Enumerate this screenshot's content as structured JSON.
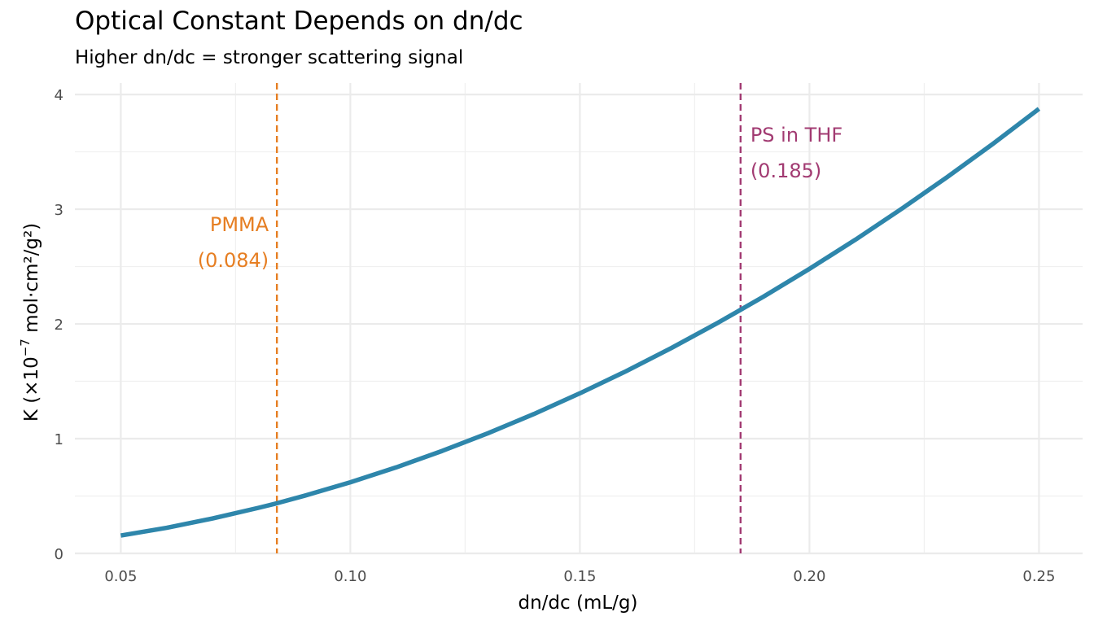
{
  "chart_data": {
    "type": "line",
    "title": "Optical Constant Depends on dn/dc",
    "subtitle": "Higher dn/dc = stronger scattering signal",
    "xlabel": "dn/dc (mL/g)",
    "ylabel": {
      "prefix": "K (×10",
      "exponent": "−7",
      "suffix": " mol·cm²/g²)"
    },
    "xlim": [
      0.04,
      0.2595
    ],
    "ylim": [
      0,
      4.1
    ],
    "x_ticks": [
      {
        "value": 0.05,
        "label": "0.05"
      },
      {
        "value": 0.1,
        "label": "0.10"
      },
      {
        "value": 0.15,
        "label": "0.15"
      },
      {
        "value": 0.2,
        "label": "0.20"
      },
      {
        "value": 0.25,
        "label": "0.25"
      }
    ],
    "y_ticks": [
      {
        "value": 0,
        "label": "0"
      },
      {
        "value": 1,
        "label": "1"
      },
      {
        "value": 2,
        "label": "2"
      },
      {
        "value": 3,
        "label": "3"
      },
      {
        "value": 4,
        "label": "4"
      }
    ],
    "x_minor": [
      0.075,
      0.125,
      0.175,
      0.225
    ],
    "y_minor": [
      0.5,
      1.5,
      2.5,
      3.5
    ],
    "grid": true,
    "series": [
      {
        "color": "#2E86AB",
        "x": [
          0.05,
          0.06,
          0.07,
          0.08,
          0.084,
          0.09,
          0.1,
          0.11,
          0.12,
          0.13,
          0.14,
          0.15,
          0.16,
          0.17,
          0.18,
          0.185,
          0.19,
          0.2,
          0.21,
          0.22,
          0.23,
          0.24,
          0.25
        ],
        "y": [
          0.155,
          0.223,
          0.304,
          0.397,
          0.437,
          0.502,
          0.62,
          0.75,
          0.893,
          1.048,
          1.215,
          1.395,
          1.587,
          1.792,
          2.009,
          2.123,
          2.238,
          2.48,
          2.734,
          3.001,
          3.28,
          3.571,
          3.875
        ]
      }
    ],
    "reference_lines": [
      {
        "x": 0.084,
        "color": "#E67E22",
        "label_line1": "PMMA",
        "label_line2": "(0.084)",
        "side": "left"
      },
      {
        "x": 0.185,
        "color": "#A23B72",
        "label_line1": "PS in THF",
        "label_line2": "(0.185)",
        "side": "right"
      }
    ]
  }
}
